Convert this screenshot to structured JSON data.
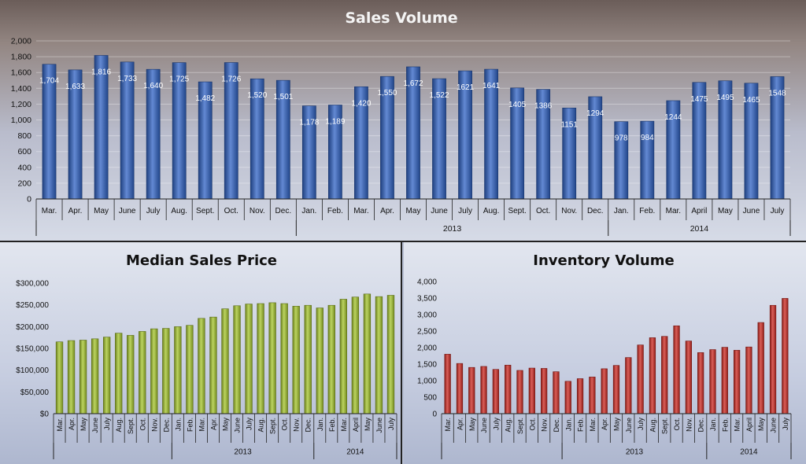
{
  "chart_data": [
    {
      "type": "bar",
      "title": "Sales Volume",
      "categories": [
        "Mar.",
        "Apr.",
        "May",
        "June",
        "July",
        "Aug.",
        "Sept.",
        "Oct.",
        "Nov.",
        "Dec.",
        "Jan.",
        "Feb.",
        "Mar.",
        "Apr.",
        "May",
        "June",
        "July",
        "Aug.",
        "Sept.",
        "Oct.",
        "Nov.",
        "Dec.",
        "Jan.",
        "Feb.",
        "Mar.",
        "April",
        "May",
        "June",
        "July"
      ],
      "values": [
        1704,
        1633,
        1816,
        1733,
        1640,
        1725,
        1482,
        1726,
        1520,
        1501,
        1178,
        1189,
        1420,
        1550,
        1672,
        1522,
        1621,
        1641,
        1405,
        1386,
        1151,
        1294,
        978,
        984,
        1244,
        1475,
        1495,
        1465,
        1548
      ],
      "value_labels": [
        "1,704",
        "1,633",
        "1,816",
        "1,733",
        "1,640",
        "1,725",
        "1,482",
        "1,726",
        "1,520",
        "1,501",
        "1,178",
        "1,189",
        "1,420",
        "1,550",
        "1,672",
        "1,522",
        "1621",
        "1641",
        "1405",
        "1386",
        "1151",
        "1294",
        "978",
        "984",
        "1244",
        "1475",
        "1495",
        "1465",
        "1548"
      ],
      "year_groups": [
        {
          "label": "",
          "count": 10
        },
        {
          "label": "2013",
          "count": 12
        },
        {
          "label": "2014",
          "count": 7
        }
      ],
      "ylim": [
        0,
        2000
      ],
      "y_ticks": [
        "0",
        "200",
        "400",
        "600",
        "800",
        "1,000",
        "1,200",
        "1,400",
        "1,600",
        "1,800",
        "2,000"
      ],
      "bar_color": "#2f62c4",
      "grid": true
    },
    {
      "type": "bar",
      "title": "Median Sales Price",
      "categories": [
        "Mar.",
        "Apr.",
        "May",
        "June",
        "July",
        "Aug.",
        "Sept.",
        "Oct.",
        "Nov.",
        "Dec.",
        "Jan.",
        "Feb.",
        "Mar.",
        "Apr.",
        "May",
        "June",
        "July",
        "Aug.",
        "Sept.",
        "Oct.",
        "Nov.",
        "Dec.",
        "Jan.",
        "Feb.",
        "Mar.",
        "April",
        "May",
        "June",
        "July"
      ],
      "values": [
        165000,
        168000,
        169000,
        172000,
        176000,
        185000,
        180000,
        189000,
        195000,
        196000,
        200000,
        203000,
        219000,
        222000,
        241000,
        248000,
        252000,
        253000,
        255000,
        253000,
        247000,
        249000,
        243000,
        249000,
        263000,
        268000,
        275000,
        269000,
        272000
      ],
      "year_groups": [
        {
          "label": "",
          "count": 10
        },
        {
          "label": "2013",
          "count": 12
        },
        {
          "label": "2014",
          "count": 7
        }
      ],
      "ylim": [
        0,
        300000
      ],
      "y_ticks": [
        "$0",
        "$50,000",
        "$100,000",
        "$150,000",
        "$200,000",
        "$250,000",
        "$300,000"
      ],
      "bar_color": "#a6c62c",
      "grid": false
    },
    {
      "type": "bar",
      "title": "Inventory Volume",
      "categories": [
        "Mar.",
        "Apr.",
        "May",
        "June",
        "July",
        "Aug.",
        "Sept.",
        "Oct.",
        "Nov.",
        "Dec.",
        "Jan.",
        "Feb.",
        "Mar.",
        "Apr.",
        "May",
        "June",
        "July",
        "Aug.",
        "Sept.",
        "Oct.",
        "Nov.",
        "Dec.",
        "Jan.",
        "Feb.",
        "Mar.",
        "April",
        "May",
        "June",
        "July"
      ],
      "values": [
        1800,
        1520,
        1400,
        1430,
        1340,
        1470,
        1310,
        1380,
        1370,
        1270,
        980,
        1060,
        1110,
        1360,
        1460,
        1700,
        2080,
        2300,
        2340,
        2660,
        2200,
        1850,
        1940,
        2010,
        1920,
        2020,
        2760,
        3280,
        3490
      ],
      "year_groups": [
        {
          "label": "",
          "count": 10
        },
        {
          "label": "2013",
          "count": 12
        },
        {
          "label": "2014",
          "count": 7
        }
      ],
      "ylim": [
        0,
        4000
      ],
      "y_ticks": [
        "0",
        "500",
        "1,000",
        "1,500",
        "2,000",
        "2,500",
        "3,000",
        "3,500",
        "4,000"
      ],
      "bar_color": "#cf2a22",
      "grid": false
    }
  ]
}
